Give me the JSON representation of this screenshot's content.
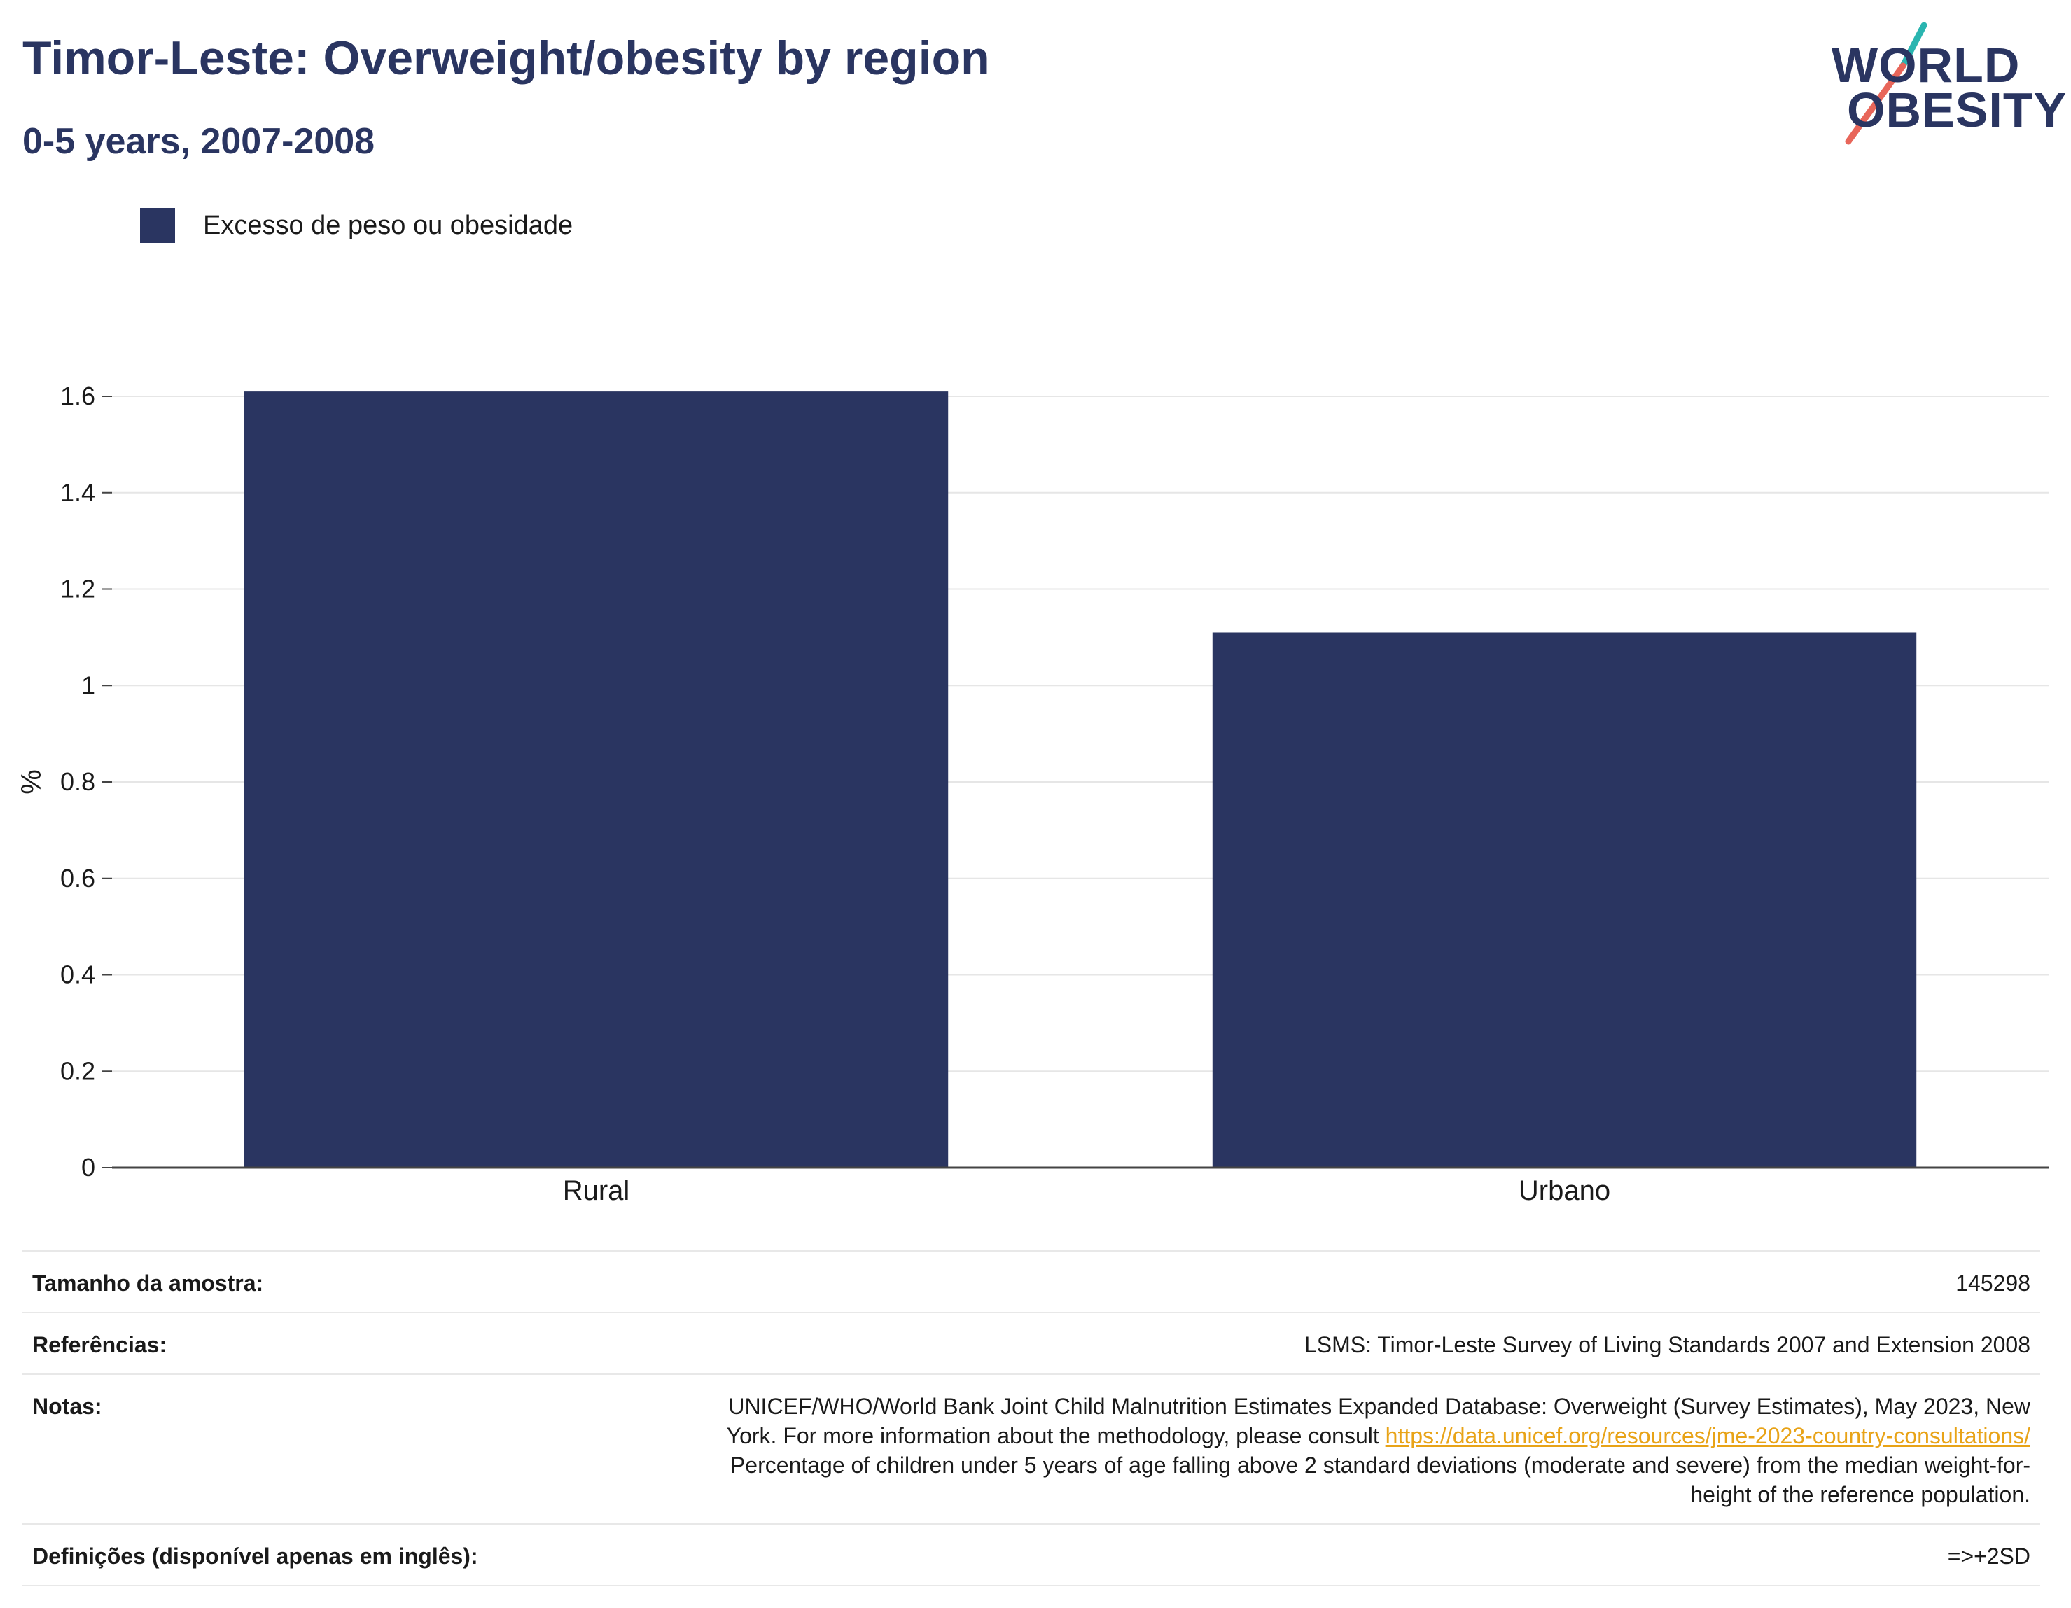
{
  "header": {
    "title": "Timor-Leste: Overweight/obesity by region",
    "subtitle": "0-5 years, 2007-2008"
  },
  "logo": {
    "line1": "WORLD",
    "line2": "OBESITY",
    "text_color": "#2a3561",
    "slash_colors": [
      "#2ab5b0",
      "#e8665a"
    ]
  },
  "legend": {
    "label": "Excesso de peso ou obesidade",
    "color": "#2a3561"
  },
  "chart_data": {
    "type": "bar",
    "categories": [
      "Rural",
      "Urbano"
    ],
    "series": [
      {
        "name": "Excesso de peso ou obesidade",
        "values": [
          1.61,
          1.11
        ],
        "color": "#2a3561"
      }
    ],
    "ylabel": "%",
    "ylim": [
      0,
      1.6
    ],
    "yticks": [
      "0",
      "0.2",
      "0.4",
      "0.6",
      "0.8",
      "1",
      "1.2",
      "1.4",
      "1.6"
    ],
    "grid": true
  },
  "info": {
    "sample_label": "Tamanho da amostra:",
    "sample_value": "145298",
    "refs_label": "Referências:",
    "refs_value": "LSMS: Timor-Leste Survey of Living Standards 2007 and Extension 2008",
    "notes_label": "Notas:",
    "notes_line1": "UNICEF/WHO/World Bank Joint Child Malnutrition Estimates Expanded Database: Overweight (Survey Estimates), May 2023, New",
    "notes_line2_prefix": "York. For more information about the methodology, please consult ",
    "notes_link": "https://data.unicef.org/resources/jme-2023-country-consultations/",
    "notes_line3": "Percentage of children under 5 years of age falling above 2 standard deviations (moderate and severe) from the median weight-for-",
    "notes_line4": "height of the reference population.",
    "defs_label": "Definições (disponível apenas em inglês):",
    "defs_value": "=>+2SD"
  }
}
